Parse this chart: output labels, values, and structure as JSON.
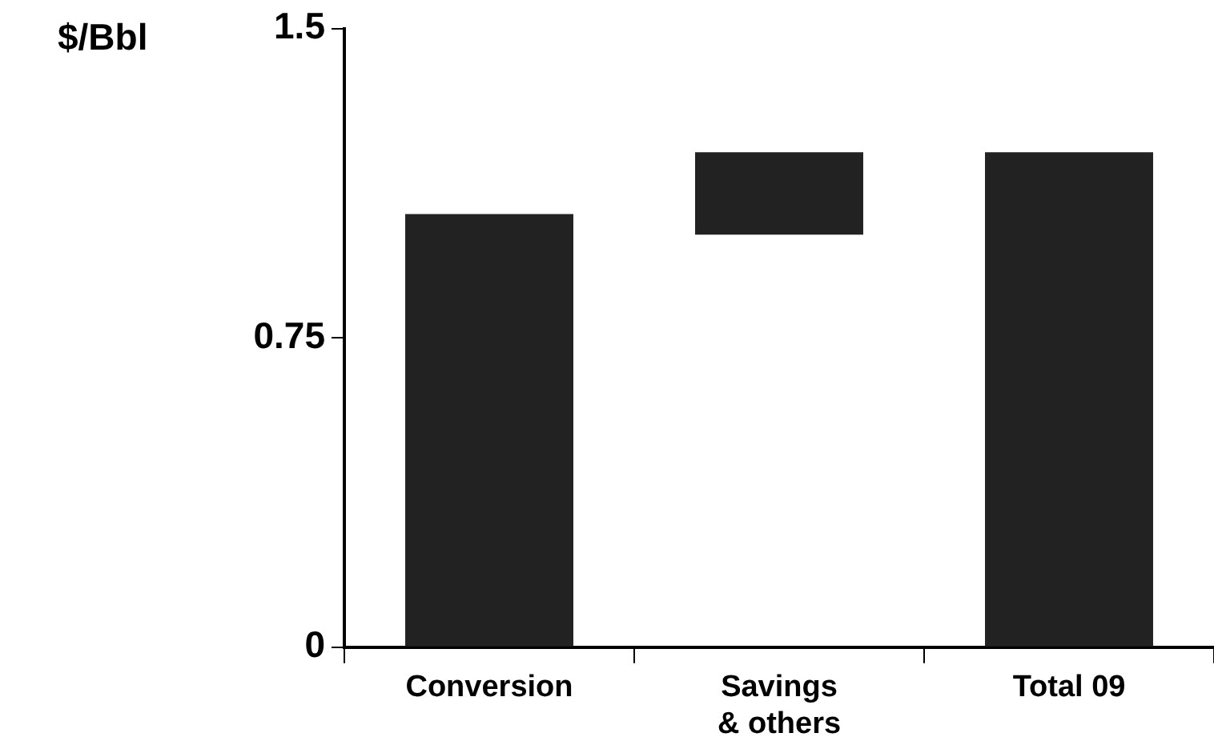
{
  "chart_data": {
    "type": "bar",
    "ylabel": "$/Bbl",
    "categories": [
      "Conversion",
      "Savings\n& others",
      "Total 09"
    ],
    "values": [
      1.05,
      0.2,
      1.2
    ],
    "base": [
      0,
      1.0,
      0
    ],
    "color": "#222222",
    "ylim": [
      0,
      1.5
    ],
    "yticks": [
      0,
      0.75,
      1.5
    ],
    "legend": false
  }
}
